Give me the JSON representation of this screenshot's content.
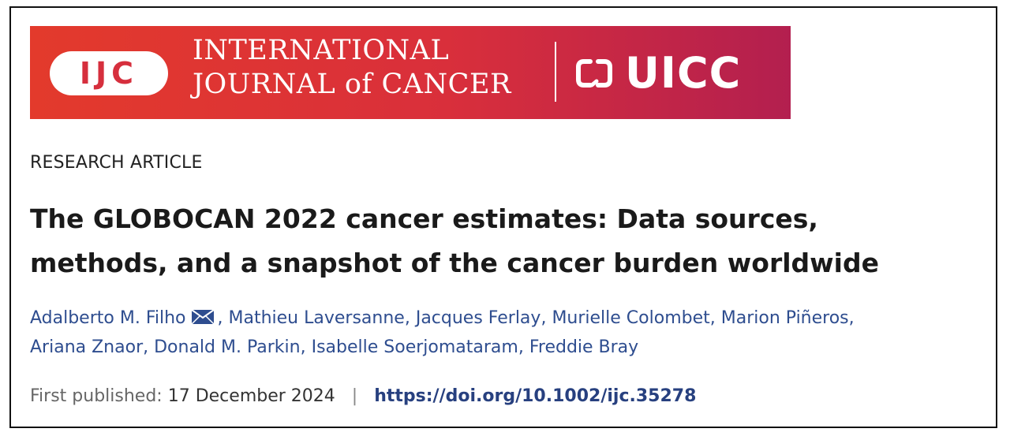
{
  "banner": {
    "logo_text": "IJC",
    "journal_line1": "INTERNATIONAL",
    "journal_line2": "JOURNAL of CANCER",
    "partner_text": "UICC",
    "gradient": [
      "#e33a2c",
      "#b31f4f"
    ]
  },
  "article": {
    "type": "RESEARCH ARTICLE",
    "title_line1": "The GLOBOCAN 2022 cancer estimates: Data sources,",
    "title_line2": "methods, and a snapshot of the cancer burden worldwide",
    "authors": [
      "Adalberto M. Filho",
      "Mathieu Laversanne",
      "Jacques Ferlay",
      "Murielle Colombet",
      "Marion Piñeros",
      "Ariana Znaor",
      "Donald M. Parkin",
      "Isabelle Soerjomataram",
      "Freddie Bray"
    ],
    "published_label": "First published:",
    "published_date": "17 December 2024",
    "separator": "|",
    "doi": "https://doi.org/10.1002/ijc.35278"
  },
  "colors": {
    "author_link": "#2e4d8f",
    "doi_link": "#27407f",
    "title": "#1a1a1a"
  }
}
